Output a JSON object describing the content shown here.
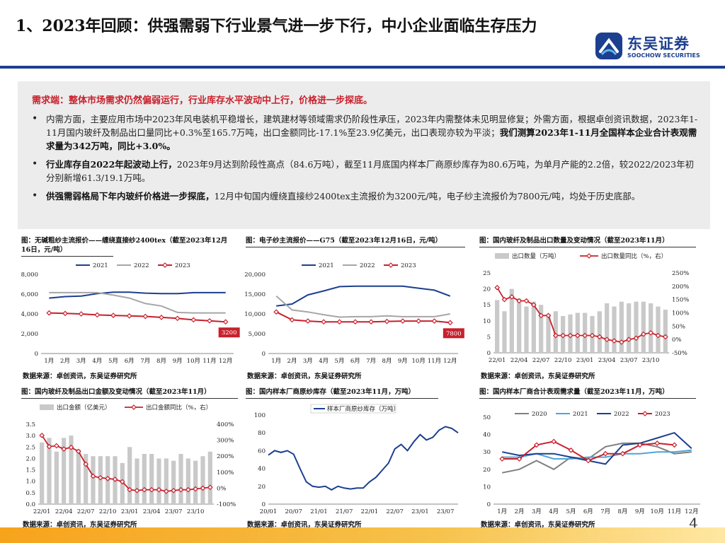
{
  "page": {
    "title": "1、2023年回顾：供强需弱下行业景气进一步下行，中小企业面临生存压力",
    "page_number": "4"
  },
  "logo": {
    "name_cn": "东吴证券",
    "name_en": "SOOCHOW SECURITIES"
  },
  "colors": {
    "accent_blue": "#1c3f8f",
    "red": "#c8202c",
    "gray": "#a6a6a6",
    "bottom_bar": "#f7a31c"
  },
  "summary": {
    "lead": "需求端：整体市场需求仍然偏弱运行，行业库存水平波动中上行，价格进一步探底。",
    "bullets": [
      {
        "pre": "内需方面，主要应用市场中2023年风电装机平稳增长，建筑建材等领域需求仍阶段性承压，2023年内需整体未见明显修复；外需方面，根据卓创资讯数据，2023年1-11月国内玻纤及制品出口量同比+0.3%至165.7万吨，出口金额同比-17.1%至23.9亿美元，出口表现亦较为平淡；",
        "bold": "我们测算2023年1-11月全国样本企业合计表观需求量为342万吨，同比+3.0%。"
      },
      {
        "bold": "行业库存自2022年起波动上行，",
        "post": "2023年9月达到阶段性高点（84.6万吨），截至11月底国内样本厂商原纱库存为80.6万吨，为单月产能的2.2倍，较2022/2023年初分别新增61.3/19.1万吨。"
      },
      {
        "bold": "供强需弱格局下年内玻纤价格进一步探底，",
        "post": "12月中旬国内缠绕直接纱2400tex主流报价为3200元/吨，电子纱主流报价为7800元/吨，均处于历史底部。"
      }
    ]
  },
  "source_text": "数据来源：卓创资讯，东吴证券研究所",
  "chart_data": [
    {
      "id": "c1",
      "type": "line",
      "title": "图：无碱粗纱主流报价——缠绕直接纱2400tex（截至2023年12月16日，元/吨）",
      "xlabel": "",
      "ylabel": "",
      "ylim": [
        0,
        8000
      ],
      "yticks": [
        "0",
        "2,000",
        "4,000",
        "6,000",
        "8,000"
      ],
      "xticks": [
        "1月",
        "2月",
        "3月",
        "4月",
        "5月",
        "6月",
        "7月",
        "8月",
        "9月",
        "10月",
        "11月",
        "12月"
      ],
      "series": [
        {
          "name": "2021",
          "color": "#1c3f8f",
          "values": [
            5600,
            5750,
            5800,
            6050,
            6200,
            6200,
            6100,
            6050,
            6050,
            6150,
            6150,
            6150
          ]
        },
        {
          "name": "2022",
          "color": "#a6a6a6",
          "values": [
            6150,
            6150,
            6150,
            6150,
            5900,
            5600,
            5050,
            4800,
            4150,
            4100,
            4100,
            4100
          ]
        },
        {
          "name": "2023",
          "color": "#c8202c",
          "values": [
            4100,
            4050,
            4000,
            3900,
            3850,
            3800,
            3750,
            3650,
            3550,
            3400,
            3300,
            3200
          ]
        }
      ],
      "annotation": "3200"
    },
    {
      "id": "c2",
      "type": "line",
      "title": "图：电子纱主流报价——G75（截至2023年12月16日，元/吨）",
      "ylim": [
        0,
        20000
      ],
      "yticks": [
        "0",
        "5,000",
        "10,000",
        "15,000",
        "20,000"
      ],
      "xticks": [
        "1月",
        "2月",
        "3月",
        "4月",
        "5月",
        "6月",
        "7月",
        "8月",
        "9月",
        "10月",
        "11月",
        "12月"
      ],
      "series": [
        {
          "name": "2021",
          "color": "#1c3f8f",
          "values": [
            12000,
            12500,
            14800,
            15800,
            16900,
            17000,
            17000,
            17000,
            17000,
            16500,
            16000,
            14500
          ]
        },
        {
          "name": "2022",
          "color": "#a6a6a6",
          "values": [
            14500,
            11000,
            10500,
            9800,
            9200,
            9300,
            9300,
            9500,
            9300,
            9300,
            9300,
            10000
          ]
        },
        {
          "name": "2023",
          "color": "#c8202c",
          "values": [
            10500,
            8500,
            8200,
            8000,
            8000,
            8000,
            8000,
            8100,
            8200,
            8200,
            8200,
            7800
          ]
        }
      ],
      "annotation": "7800"
    },
    {
      "id": "c3",
      "type": "bar",
      "title": "图：国内玻纤及制品出口数量及变动情况（截至2023年11月）",
      "legend": [
        "出口数量（万吨）",
        "出口数量同比（%，右）"
      ],
      "ylim": [
        0,
        25
      ],
      "yticks": [
        "0",
        "5",
        "10",
        "15",
        "20",
        "25"
      ],
      "y2lim": [
        -50,
        250
      ],
      "y2ticks": [
        "-50%",
        "0%",
        "50%",
        "100%",
        "150%",
        "200%",
        "250%"
      ],
      "xticks": [
        "22/01",
        "22/04",
        "22/07",
        "22/10",
        "23/01",
        "23/04",
        "23/07",
        "23/10"
      ],
      "bars": [
        16.5,
        13.0,
        20.0,
        17.0,
        14.5,
        16.0,
        15.0,
        12.0,
        13.0,
        11.5,
        12.0,
        12.5,
        12.5,
        11.5,
        13.0,
        15.5,
        14.5,
        16.0,
        15.5,
        16.0,
        16.0,
        15.5,
        14.5,
        13.5
      ],
      "line": [
        195,
        150,
        160,
        145,
        145,
        130,
        90,
        90,
        15,
        15,
        15,
        15,
        15,
        15,
        10,
        0,
        -5,
        -10,
        0,
        5,
        20,
        25,
        15,
        10
      ]
    },
    {
      "id": "c4",
      "type": "bar",
      "title": "图：国内玻纤及制品出口金额及变动情况（截至2023年11月）",
      "legend": [
        "出口金额（亿美元）",
        "出口金额同比（%，右）"
      ],
      "ylim": [
        0,
        3.5
      ],
      "yticks": [
        "0.0",
        "0.5",
        "1.0",
        "1.5",
        "2.0",
        "2.5",
        "3.0",
        "3.5"
      ],
      "y2lim": [
        -100,
        400
      ],
      "y2ticks": [
        "-100%",
        "0%",
        "100%",
        "200%",
        "300%",
        "400%"
      ],
      "xticks": [
        "22/01",
        "22/04",
        "22/07",
        "22/10",
        "23/01",
        "23/04",
        "23/07",
        "23/10"
      ],
      "bars": [
        2.7,
        2.9,
        2.3,
        2.9,
        3.0,
        2.4,
        2.2,
        2.1,
        2.1,
        2.1,
        2.1,
        1.8,
        2.5,
        2.0,
        2.2,
        2.2,
        2.0,
        2.0,
        1.9,
        2.2,
        2.0,
        1.9,
        2.1,
        2.3
      ],
      "line": [
        330,
        260,
        265,
        245,
        255,
        230,
        150,
        75,
        65,
        60,
        55,
        40,
        -10,
        -15,
        -10,
        -10,
        -10,
        -20,
        -15,
        -10,
        -10,
        -5,
        0,
        5
      ]
    },
    {
      "id": "c5",
      "type": "line",
      "title": "图：国内样本厂商原纱库存（截至2023年11月，万吨）",
      "legend": [
        "样本厂商原纱库存（万吨）"
      ],
      "ylim": [
        0,
        100
      ],
      "yticks": [
        "0",
        "20",
        "40",
        "60",
        "80",
        "100"
      ],
      "xticks": [
        "20/01",
        "20/07",
        "21/01",
        "21/07",
        "22/01",
        "22/07",
        "23/01",
        "23/07"
      ],
      "series": [
        {
          "name": "样本厂商原纱库存",
          "color": "#1c3f8f",
          "values": [
            55,
            60,
            58,
            60,
            56,
            40,
            25,
            20,
            19,
            20,
            16,
            20,
            18,
            17,
            18,
            18,
            25,
            30,
            38,
            46,
            62,
            67,
            60,
            70,
            78,
            72,
            75,
            83,
            87,
            85,
            80
          ]
        }
      ]
    },
    {
      "id": "c6",
      "type": "line",
      "title": "图：国内样本厂商合计表观需求量（截至2023年11月，万吨）",
      "ylim": [
        0,
        50
      ],
      "yticks": [
        "0",
        "10",
        "20",
        "30",
        "40",
        "50"
      ],
      "xticks": [
        "1月",
        "2月",
        "3月",
        "4月",
        "5月",
        "6月",
        "7月",
        "8月",
        "9月",
        "10月",
        "11月",
        "12月"
      ],
      "series": [
        {
          "name": "2020",
          "color": "#7f7f7f",
          "values": [
            18,
            20,
            25,
            20,
            27,
            26,
            33,
            35,
            35,
            33,
            29,
            30
          ]
        },
        {
          "name": "2021",
          "color": "#4da6d8",
          "values": [
            27,
            27,
            29,
            26,
            26,
            27,
            27,
            29,
            29,
            30,
            30,
            31
          ]
        },
        {
          "name": "2022",
          "color": "#1c3f8f",
          "values": [
            30,
            28,
            29,
            29,
            27,
            25,
            23,
            34,
            35,
            38,
            41,
            32
          ]
        },
        {
          "name": "2023",
          "color": "#c8202c",
          "values": [
            26,
            26,
            34,
            36,
            31,
            25,
            29,
            29,
            34,
            35,
            34
          ]
        }
      ]
    }
  ]
}
